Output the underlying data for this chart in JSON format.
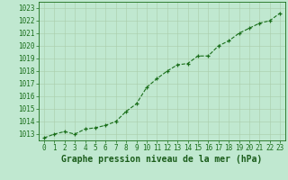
{
  "x": [
    0,
    1,
    2,
    3,
    4,
    5,
    6,
    7,
    8,
    9,
    10,
    11,
    12,
    13,
    14,
    15,
    16,
    17,
    18,
    19,
    20,
    21,
    22,
    23
  ],
  "y": [
    1012.7,
    1013.0,
    1013.2,
    1013.0,
    1013.4,
    1013.5,
    1013.7,
    1014.0,
    1014.8,
    1015.4,
    1016.7,
    1017.4,
    1018.0,
    1018.5,
    1018.6,
    1019.2,
    1019.2,
    1020.0,
    1020.4,
    1021.0,
    1021.4,
    1021.8,
    1022.0,
    1022.6
  ],
  "line_color": "#1a6e1a",
  "marker_color": "#1a6e1a",
  "bg_color": "#c0e8d0",
  "grid_color": "#aaccaa",
  "xlabel": "Graphe pression niveau de la mer (hPa)",
  "xlabel_color": "#1a5c1a",
  "ylim_min": 1012.5,
  "ylim_max": 1023.5,
  "yticks": [
    1013,
    1014,
    1015,
    1016,
    1017,
    1018,
    1019,
    1020,
    1021,
    1022,
    1023
  ],
  "xticks": [
    0,
    1,
    2,
    3,
    4,
    5,
    6,
    7,
    8,
    9,
    10,
    11,
    12,
    13,
    14,
    15,
    16,
    17,
    18,
    19,
    20,
    21,
    22,
    23
  ],
  "tick_fontsize": 5.5,
  "xlabel_fontsize": 7.0,
  "line_width": 0.8,
  "marker_size": 3.0
}
